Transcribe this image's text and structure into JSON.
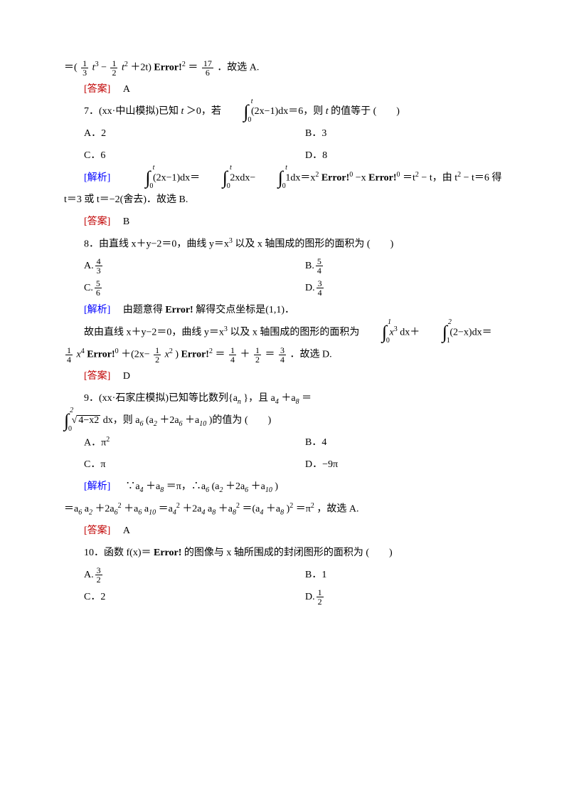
{
  "colors": {
    "text": "#000000",
    "red": "#c00000",
    "blue": "#0000ff",
    "bg": "#ffffff"
  },
  "typography": {
    "base_size": 14,
    "small": 12,
    "family": "SimSun"
  },
  "labels": {
    "answer": "[答案]",
    "analysis": "[解析]",
    "blank": "(　　)",
    "error": "Error!",
    "select_a": "故选 A.",
    "select_b": "故选 B.",
    "select_d": "故选 D."
  },
  "line_top": {
    "pre": "＝(",
    "f1n": "1",
    "f1d": "3",
    "t3": "t",
    "sup3": "3",
    "minus": "−",
    "f2n": "1",
    "f2d": "2",
    "t2": "t",
    "sup2": "2",
    "plus2t": "＋2t)",
    "eq": "＝",
    "bar2": "2",
    "f3n": "17",
    "f3d": "6",
    "tail": "．故选 A."
  },
  "ans6": "A",
  "q7": {
    "stem_a": "7．(xx·中山模拟)已知 ",
    "tgt0": "t＞0，若",
    "int_lo": "0",
    "int_up": "t",
    "expr": "(2x−1)dx＝6，则 ",
    "tvar": "t",
    "stem_b": " 的值等于",
    "opts": {
      "A": "A．2",
      "B": "B．3",
      "C": "C．6",
      "D": "D．8"
    },
    "sol_a": "",
    "sol_expr1": "(2x−1)dx＝",
    "sol_expr2": "2xdx−",
    "sol_expr3": "1dx＝x",
    "sol_mid": "−x",
    "sol_mid2": "＝t",
    "sol_mid3": "− t，由 t",
    "sol_mid4": "− t＝6 得",
    "sol_line2": "t＝3 或 t＝−2(舍去)．故选 B.",
    "ans": "B"
  },
  "q8": {
    "stem": "8．由直线 x＋y−2＝0，曲线 y＝x",
    "sup3": "3",
    "stem2": " 以及 x 轴围成的图形的面积为",
    "opts": {
      "A": {
        "lab": "A.",
        "n": "4",
        "d": "3"
      },
      "B": {
        "lab": "B.",
        "n": "5",
        "d": "4"
      },
      "C": {
        "lab": "C.",
        "n": "5",
        "d": "6"
      },
      "D": {
        "lab": "D.",
        "n": "3",
        "d": "4"
      }
    },
    "sol1": "由题意得",
    "sol1b": " 解得交点坐标是(1,1)．",
    "sol2a": "故由直线 x＋y−2＝0，曲线 y＝x",
    "sol2b": " 以及 x 轴围成的图形的面积为",
    "int1_lo": "0",
    "int1_up": "1",
    "int1_body": "x",
    "int1_sup": "3",
    "int1_dx": "dx＋",
    "int2_lo": "1",
    "int2_up": "2",
    "int2_body": "(2−x)dx＝",
    "line3_f1n": "1",
    "line3_f1d": "4",
    "line3_x4": "x",
    "line3_plus": "＋(2x−",
    "line3_f2n": "1",
    "line3_f2d": "2",
    "line3_x2": "x",
    "line3_close": ")",
    "line3_eq": "＝",
    "line3_r1n": "1",
    "line3_r1d": "4",
    "line3_r2n": "1",
    "line3_r2d": "2",
    "line3_r3n": "3",
    "line3_r3d": "4",
    "line3_tail": "．故选 D.",
    "ans": "D"
  },
  "q9": {
    "stem_a": "9．(xx·石家庄模拟)已知等比数列{a",
    "sub_n": "n",
    "stem_b": "}，且 a",
    "sub4": "4",
    "plus": "＋a",
    "sub8": "8",
    "eq": "＝",
    "int_lo": "0",
    "int_up": "2",
    "sqrt_body": "4−x2",
    "dx": "dx，则 a",
    "sub6": "6",
    "paren": "(a",
    "sub2": "2",
    "p2": "＋2a",
    "p3": "＋a",
    "sub10": "10",
    "close": ")的值为",
    "opts": {
      "A": "A．π",
      "A2": "2",
      "B": "B．4",
      "C": "C．π",
      "D": "D．−9π"
    },
    "sol_a": "∵a",
    "sol_b": "＋a",
    "sol_c": "＝π，∴a",
    "sol_d": "(a",
    "sol_e": "＋2a",
    "sol_f": "＋a",
    "sol_g": ")",
    "line2_a": "＝a",
    "line2_b": "a",
    "line2_c": "＋2a",
    "line2_d": "＋a",
    "line2_e": "a",
    "line2_f": "＝a",
    "line2_g": "＋2a",
    "line2_h": "a",
    "line2_i": "＋a",
    "line2_j": "＝(a",
    "line2_k": "＋a",
    "line2_l": ")",
    "line2_m": "＝π",
    "line2_n": "，故选 A.",
    "ans": "A"
  },
  "q10": {
    "stem_a": "10．函数 f(x)＝",
    "stem_b": "的图像与 x 轴所围成的封闭图形的面积为",
    "opts": {
      "A": {
        "lab": "A.",
        "n": "3",
        "d": "2"
      },
      "B": "B．1",
      "C": "C．2",
      "D": {
        "lab": "D.",
        "n": "1",
        "d": "2"
      }
    }
  },
  "supbar": {
    "zero": "0",
    "two": "2",
    "one": "1"
  }
}
